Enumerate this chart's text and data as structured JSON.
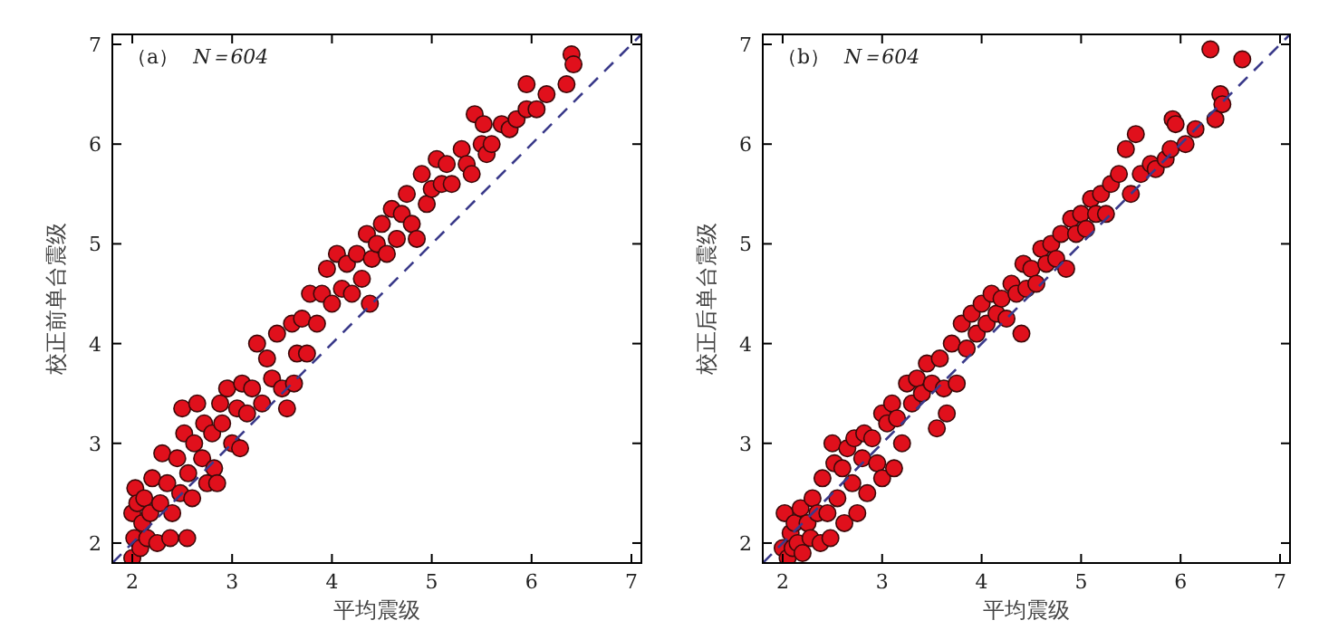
{
  "chart_data": [
    {
      "type": "scatter",
      "xlabel": "平均震级",
      "ylabel": "校正前单台震级",
      "annotations": [
        "（a）",
        "N＝604"
      ],
      "xlim": [
        1.8,
        7.1
      ],
      "ylim": [
        1.8,
        7.1
      ],
      "xticks": [
        2,
        3,
        4,
        5,
        6,
        7
      ],
      "yticks": [
        2,
        3,
        4,
        5,
        6,
        7
      ],
      "series": [
        {
          "marker": "circle",
          "color": "#e0101c",
          "x": [
            2.0,
            2.02,
            2.0,
            2.03,
            2.05,
            2.08,
            2.1,
            2.12,
            2.15,
            2.18,
            2.2,
            2.25,
            2.28,
            2.3,
            2.35,
            2.38,
            2.4,
            2.45,
            2.48,
            2.5,
            2.52,
            2.55,
            2.56,
            2.6,
            2.62,
            2.65,
            2.7,
            2.72,
            2.75,
            2.8,
            2.82,
            2.85,
            2.88,
            2.9,
            2.95,
            3.0,
            3.05,
            3.08,
            3.1,
            3.15,
            3.2,
            3.25,
            3.3,
            3.35,
            3.4,
            3.45,
            3.5,
            3.55,
            3.6,
            3.62,
            3.65,
            3.7,
            3.75,
            3.78,
            3.85,
            3.9,
            3.95,
            4.0,
            4.05,
            4.1,
            4.15,
            4.2,
            4.25,
            4.3,
            4.35,
            4.38,
            4.4,
            4.45,
            4.5,
            4.55,
            4.6,
            4.65,
            4.7,
            4.75,
            4.8,
            4.85,
            4.9,
            4.95,
            5.0,
            5.05,
            5.1,
            5.15,
            5.2,
            5.3,
            5.35,
            5.4,
            5.43,
            5.5,
            5.52,
            5.55,
            5.6,
            5.7,
            5.78,
            5.85,
            5.95,
            5.95,
            6.05,
            6.15,
            6.35,
            6.4,
            6.42
          ],
          "values": [
            1.85,
            2.05,
            2.3,
            2.55,
            2.4,
            1.95,
            2.2,
            2.45,
            2.05,
            2.3,
            2.65,
            2.0,
            2.4,
            2.9,
            2.6,
            2.05,
            2.3,
            2.85,
            2.5,
            3.35,
            3.1,
            2.05,
            2.7,
            2.45,
            3.0,
            3.4,
            2.85,
            3.2,
            2.6,
            3.1,
            2.75,
            2.6,
            3.4,
            3.2,
            3.55,
            3.0,
            3.35,
            2.95,
            3.6,
            3.3,
            3.55,
            4.0,
            3.4,
            3.85,
            3.65,
            4.1,
            3.55,
            3.35,
            4.2,
            3.6,
            3.9,
            4.25,
            3.9,
            4.5,
            4.2,
            4.5,
            4.75,
            4.4,
            4.9,
            4.55,
            4.8,
            4.5,
            4.9,
            4.65,
            5.1,
            4.4,
            4.85,
            5.0,
            5.2,
            4.9,
            5.35,
            5.05,
            5.3,
            5.5,
            5.2,
            5.05,
            5.7,
            5.4,
            5.55,
            5.85,
            5.6,
            5.8,
            5.6,
            5.95,
            5.8,
            5.7,
            6.3,
            6.0,
            6.2,
            5.9,
            6.0,
            6.2,
            6.15,
            6.25,
            6.35,
            6.6,
            6.35,
            6.5,
            6.6,
            6.9,
            6.8
          ]
        },
        {
          "type": "line",
          "color": "#3a3a8a",
          "line_style": "dashed",
          "x": [
            1.8,
            7.1
          ],
          "values": [
            1.8,
            7.1
          ]
        }
      ]
    },
    {
      "type": "scatter",
      "xlabel": "平均震级",
      "ylabel": "校正后单台震级",
      "annotations": [
        "（b）",
        "N＝604"
      ],
      "xlim": [
        1.8,
        7.1
      ],
      "ylim": [
        1.8,
        7.1
      ],
      "xticks": [
        2,
        3,
        4,
        5,
        6,
        7
      ],
      "yticks": [
        2,
        3,
        4,
        5,
        6,
        7
      ],
      "series": [
        {
          "marker": "circle",
          "color": "#e0101c",
          "x": [
            2.0,
            2.02,
            2.05,
            2.08,
            2.1,
            2.12,
            2.15,
            2.18,
            2.2,
            2.25,
            2.28,
            2.3,
            2.35,
            2.38,
            2.4,
            2.45,
            2.48,
            2.5,
            2.52,
            2.55,
            2.6,
            2.62,
            2.65,
            2.7,
            2.72,
            2.75,
            2.8,
            2.82,
            2.85,
            2.9,
            2.95,
            3.0,
            3.0,
            3.05,
            3.1,
            3.12,
            3.15,
            3.2,
            3.25,
            3.3,
            3.35,
            3.4,
            3.45,
            3.5,
            3.55,
            3.58,
            3.62,
            3.65,
            3.7,
            3.75,
            3.8,
            3.85,
            3.9,
            3.95,
            4.0,
            4.05,
            4.1,
            4.15,
            4.2,
            4.25,
            4.3,
            4.35,
            4.4,
            4.42,
            4.45,
            4.5,
            4.55,
            4.6,
            4.65,
            4.7,
            4.75,
            4.8,
            4.85,
            4.9,
            4.95,
            5.0,
            5.05,
            5.1,
            5.15,
            5.2,
            5.25,
            5.3,
            5.38,
            5.45,
            5.5,
            5.55,
            5.6,
            5.7,
            5.75,
            5.85,
            5.9,
            5.92,
            5.95,
            6.05,
            6.15,
            6.3,
            6.35,
            6.4,
            6.42,
            6.62
          ],
          "values": [
            1.95,
            2.3,
            1.85,
            2.1,
            1.95,
            2.2,
            2.0,
            2.35,
            1.9,
            2.2,
            2.05,
            2.45,
            2.3,
            2.0,
            2.65,
            2.3,
            2.05,
            3.0,
            2.8,
            2.45,
            2.75,
            2.2,
            2.95,
            2.6,
            3.05,
            2.3,
            2.85,
            3.1,
            2.5,
            3.05,
            2.8,
            3.3,
            2.65,
            3.2,
            3.4,
            2.75,
            3.25,
            3.0,
            3.6,
            3.4,
            3.65,
            3.5,
            3.8,
            3.6,
            3.15,
            3.85,
            3.55,
            3.3,
            4.0,
            3.6,
            4.2,
            3.95,
            4.3,
            4.1,
            4.4,
            4.2,
            4.5,
            4.3,
            4.45,
            4.25,
            4.6,
            4.5,
            4.1,
            4.8,
            4.55,
            4.75,
            4.6,
            4.95,
            4.8,
            5.0,
            4.85,
            5.1,
            4.75,
            5.25,
            5.1,
            5.3,
            5.15,
            5.45,
            5.3,
            5.5,
            5.3,
            5.6,
            5.7,
            5.95,
            5.5,
            6.1,
            5.7,
            5.8,
            5.75,
            5.85,
            5.95,
            6.25,
            6.2,
            6.0,
            6.15,
            6.95,
            6.25,
            6.5,
            6.4,
            6.85
          ]
        },
        {
          "type": "line",
          "color": "#3a3a8a",
          "line_style": "dashed",
          "x": [
            1.8,
            7.1
          ],
          "values": [
            1.8,
            7.1
          ]
        }
      ]
    }
  ]
}
